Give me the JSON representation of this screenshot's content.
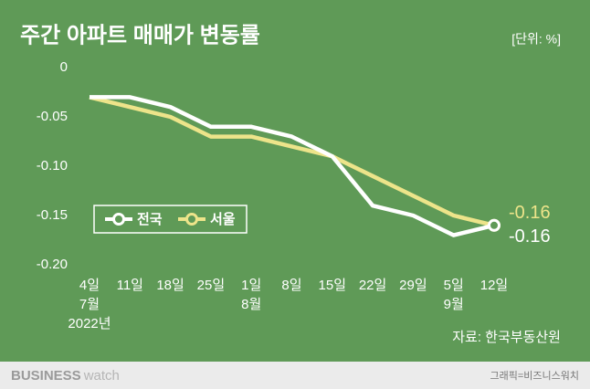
{
  "chart_data": {
    "type": "line",
    "title": "주간 아파트 매매가 변동률",
    "unit": "[단위: %]",
    "source": "자료: 한국부동산원",
    "categories": [
      "4일\n7월\n2022년",
      "11일",
      "18일",
      "25일",
      "1일\n8월",
      "8일",
      "15일",
      "22일",
      "29일",
      "5일\n9월",
      "12일"
    ],
    "series": [
      {
        "name": "전국",
        "color": "#ffffff",
        "values": [
          -0.03,
          -0.03,
          -0.04,
          -0.06,
          -0.06,
          -0.07,
          -0.09,
          -0.14,
          -0.15,
          -0.17,
          -0.16
        ],
        "value_labels": [
          null,
          null,
          null,
          null,
          null,
          null,
          null,
          null,
          null,
          null,
          "-0.16"
        ]
      },
      {
        "name": "서울",
        "color": "#ede48a",
        "values": [
          -0.03,
          -0.04,
          -0.05,
          -0.07,
          -0.07,
          -0.08,
          -0.09,
          -0.11,
          -0.13,
          -0.15,
          -0.16
        ],
        "value_labels": [
          null,
          null,
          null,
          null,
          null,
          null,
          null,
          null,
          null,
          null,
          "-0.16"
        ]
      }
    ],
    "ylim": [
      -0.2,
      0
    ],
    "yticks": [
      0,
      -0.05,
      {
        "value": -0.1,
        "label": "-0.10"
      },
      -0.15,
      {
        "value": -0.2,
        "label": "-0.20"
      }
    ],
    "legend": "lower-left"
  },
  "footer": {
    "brand_bold": "BUSINESS",
    "brand_light": "watch",
    "credit": "그래픽=비즈니스워치"
  }
}
